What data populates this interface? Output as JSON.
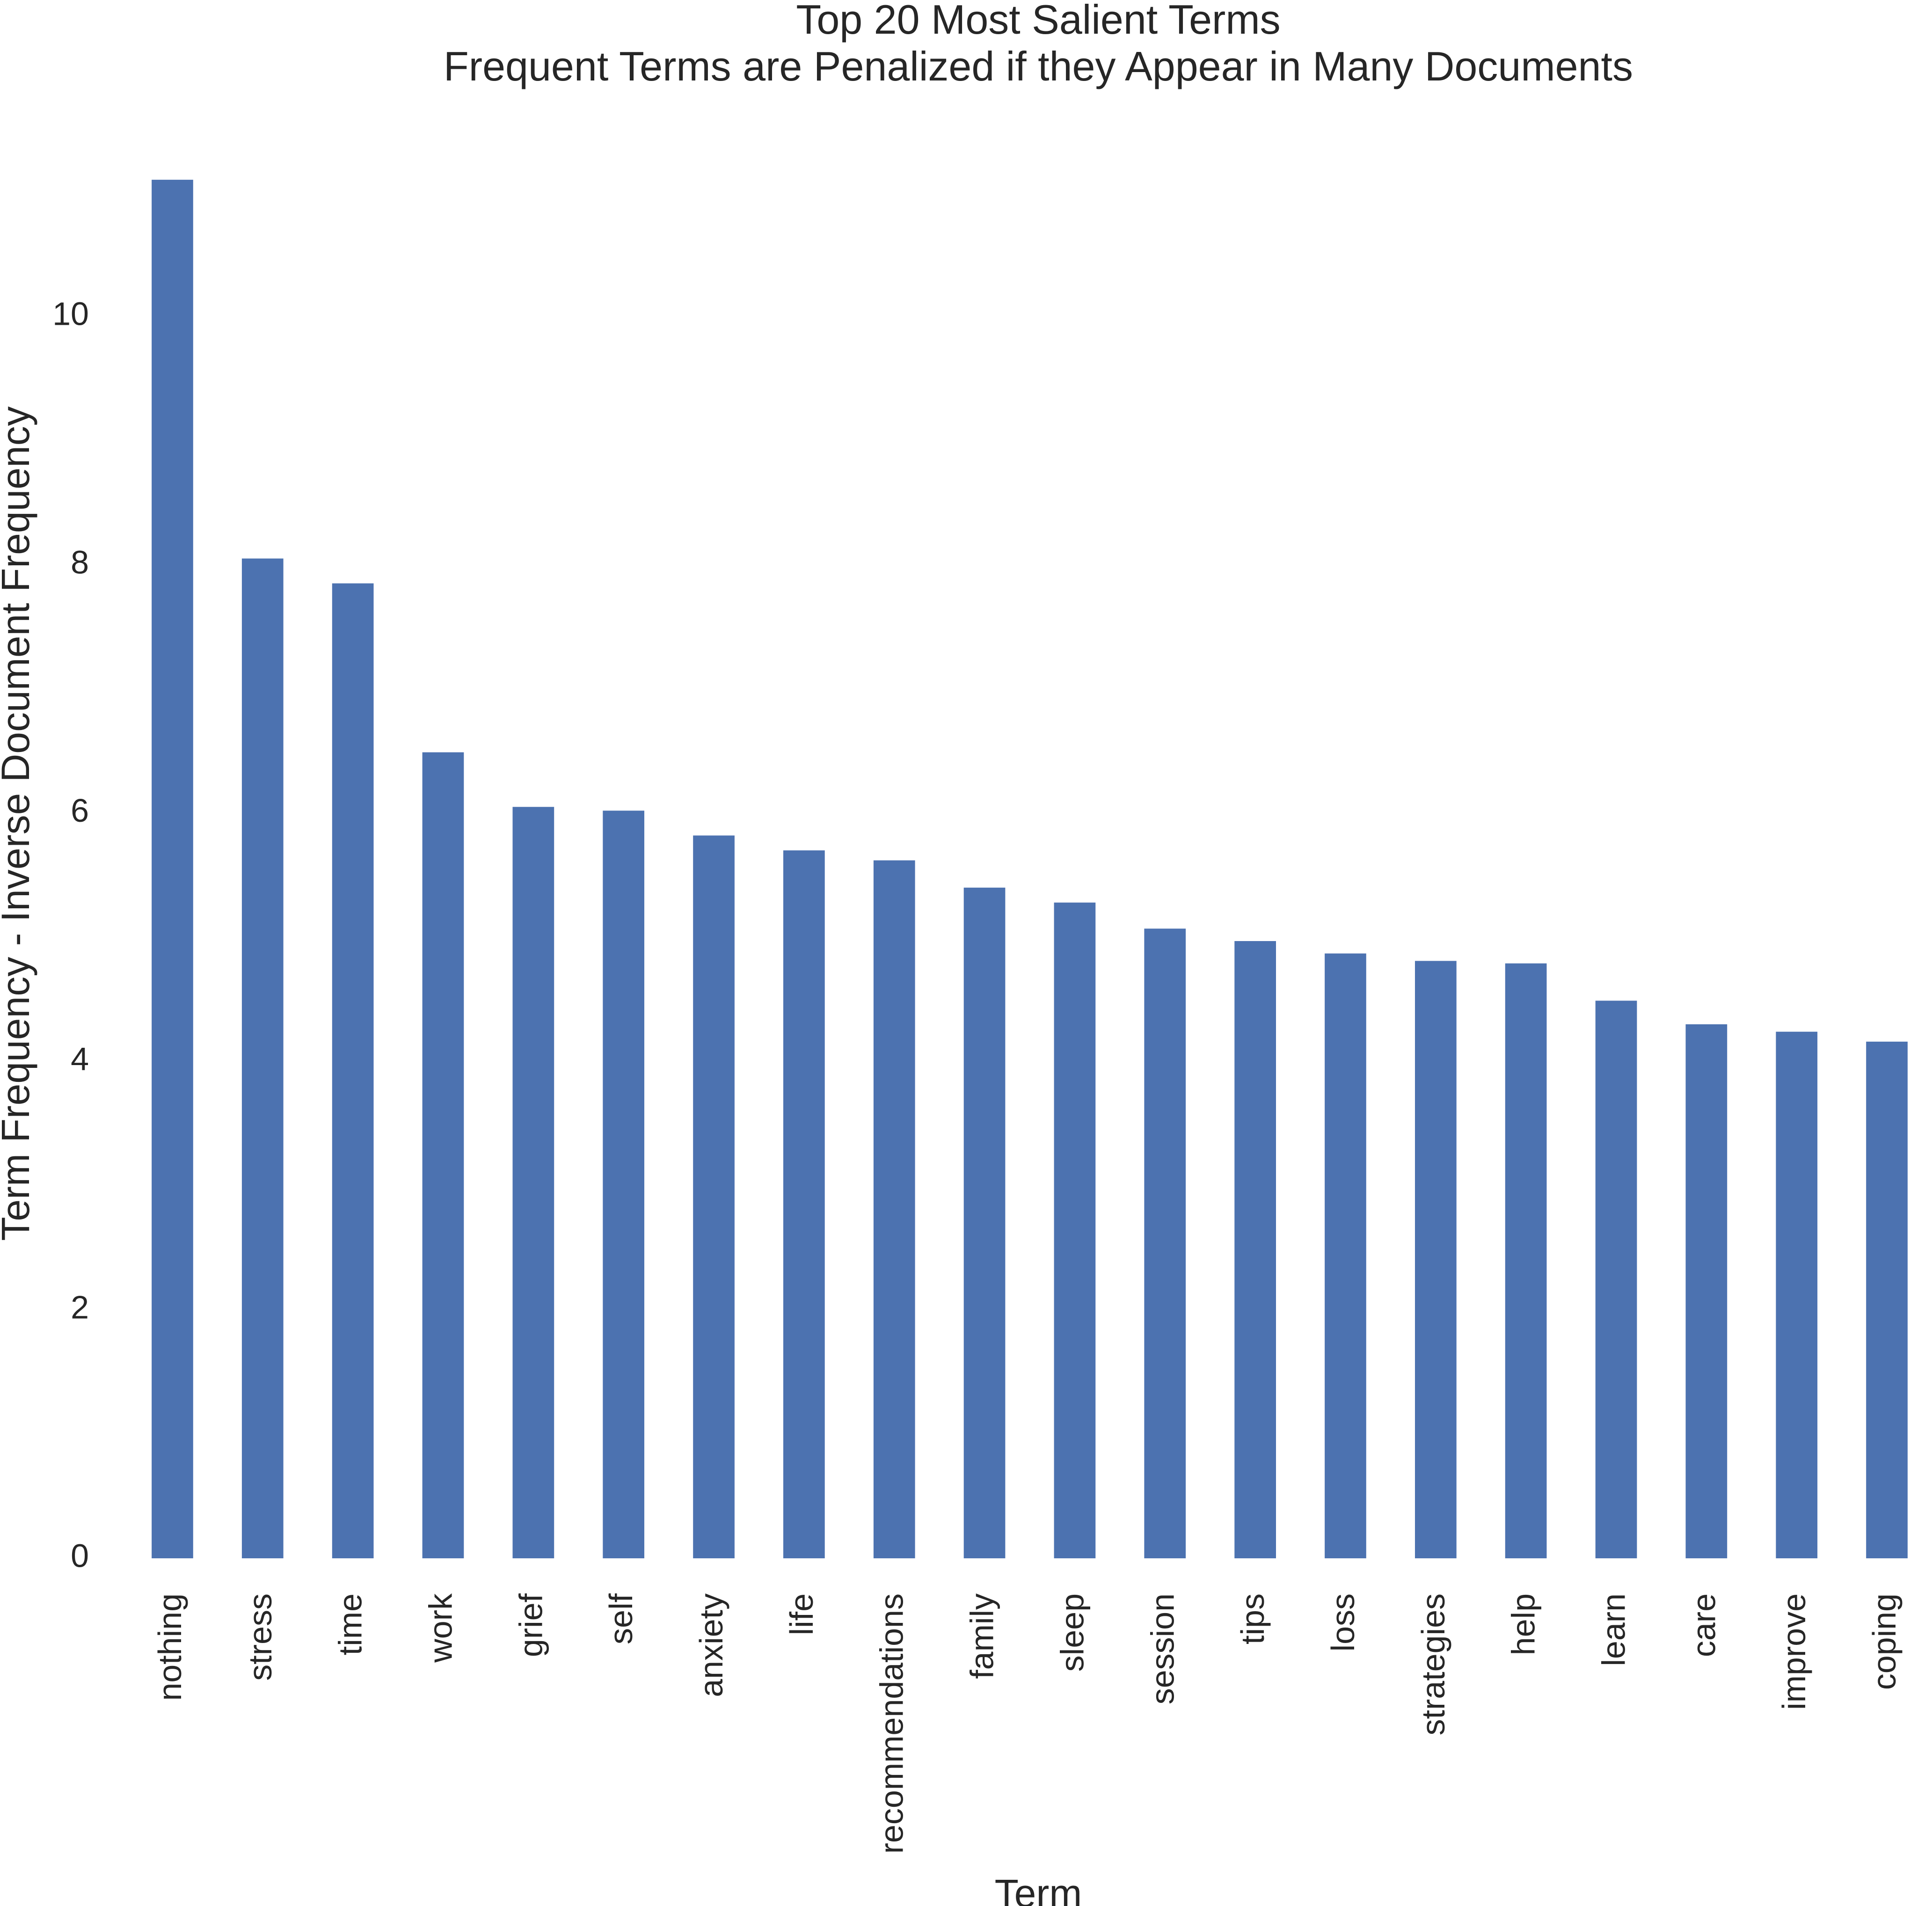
{
  "chart_data": {
    "type": "bar",
    "title": "Top 20 Most Salient Terms",
    "subtitle": "Frequent Terms are Penalized if they Appear in Many Documents",
    "xlabel": "Term",
    "ylabel": "Term Frequency - Inverse Document Frequency",
    "ylim": [
      0,
      11.4
    ],
    "yticks": [
      0,
      2,
      4,
      6,
      8,
      10
    ],
    "grid": false,
    "bar_color": "#4c72b0",
    "categories": [
      "nothing",
      "stress",
      "time",
      "work",
      "grief",
      "self",
      "anxiety",
      "life",
      "recommendations",
      "family",
      "sleep",
      "session",
      "tips",
      "loss",
      "strategies",
      "help",
      "learn",
      "care",
      "improve",
      "coping"
    ],
    "values": [
      11.1,
      8.05,
      7.85,
      6.49,
      6.05,
      6.02,
      5.82,
      5.7,
      5.62,
      5.4,
      5.28,
      5.07,
      4.97,
      4.87,
      4.81,
      4.79,
      4.49,
      4.3,
      4.24,
      4.16
    ]
  }
}
